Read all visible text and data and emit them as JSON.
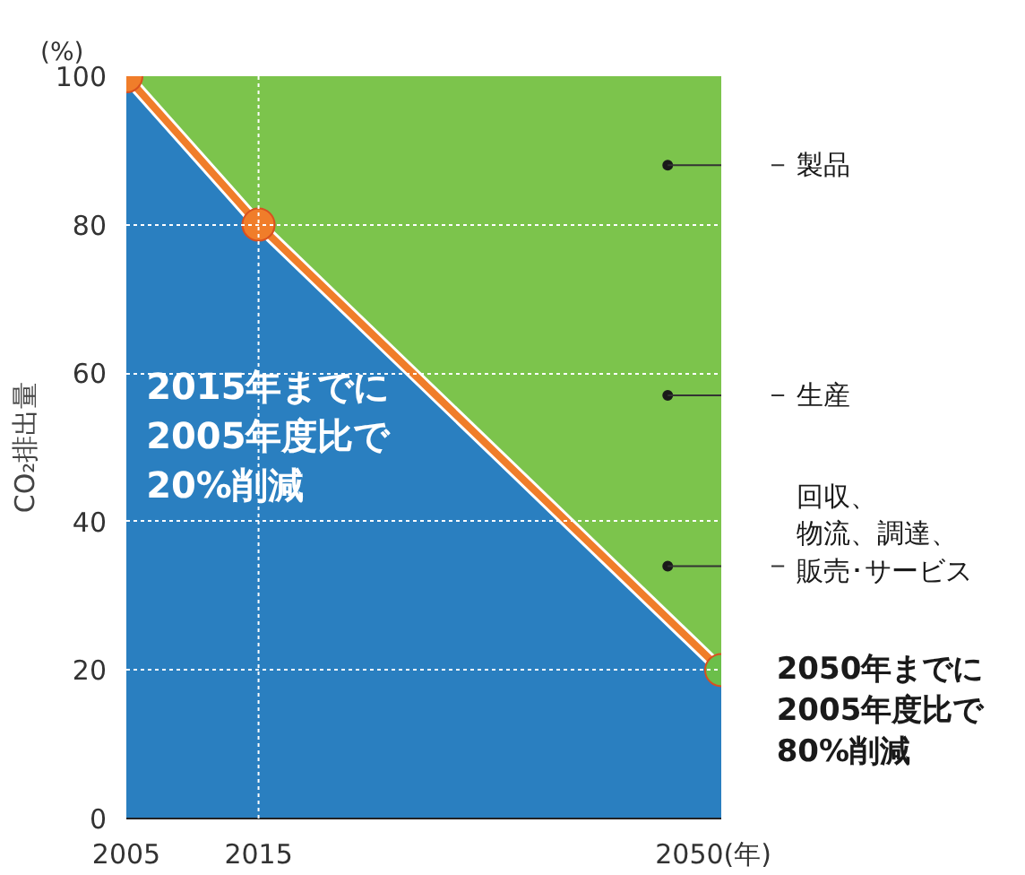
{
  "chart_data": {
    "type": "area",
    "ylabel": "CO₂排出量",
    "x": [
      2005,
      2015,
      2050
    ],
    "series": [
      {
        "type": "area",
        "color": "#2a7fc0",
        "colors": [
          "#f07d2a",
          "#f07d2a",
          "#6bbf4a"
        ],
        "marker": "circle",
        "values": [
          100,
          80,
          20
        ]
      },
      {
        "type": "area",
        "color": "#7cc44c",
        "values": [
          0,
          20,
          80
        ]
      }
    ],
    "stacked": true,
    "xlim": [
      2005,
      2050
    ],
    "xticks": [
      2005,
      2015,
      {
        "value": 2050,
        "label": "2050(年)"
      }
    ],
    "ylim": [
      0,
      100
    ],
    "yticks": [
      0,
      20,
      40,
      60,
      80,
      100
    ],
    "grid": "y",
    "ref_lines": [
      {
        "axis": "x",
        "value": 2015,
        "color": "#ffffff",
        "line_style": "dotted"
      }
    ],
    "annotations": [
      "(%)",
      "2015年までに\n2005年度比で\n20%削減",
      {
        "text": "2050年までに\n2005年度比で\n80%削減",
        "x": 2050,
        "y": 20
      },
      "製品",
      "生産",
      "回収、物流、調達、販売･サービス"
    ]
  }
}
